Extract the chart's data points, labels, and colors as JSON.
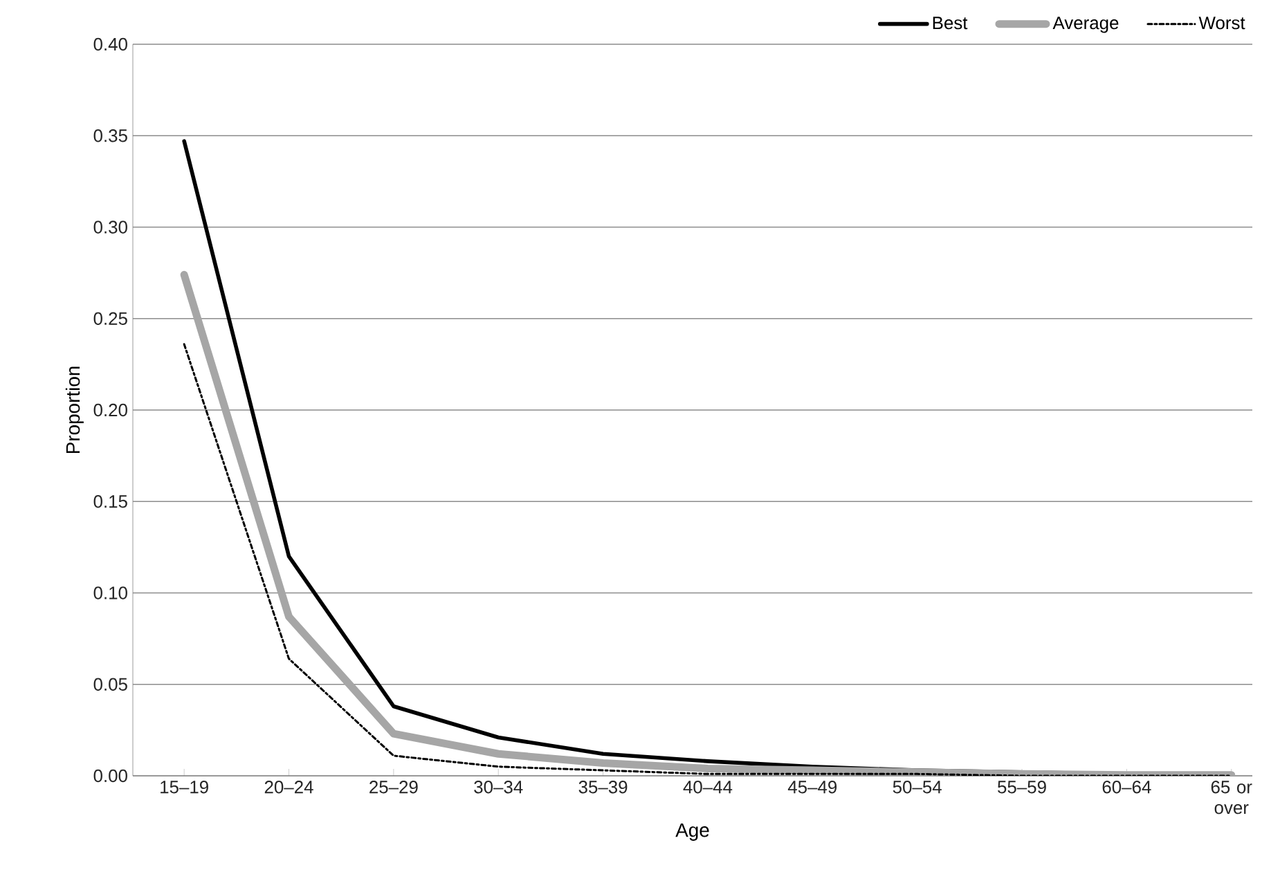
{
  "chart_data": {
    "type": "line",
    "xlabel": "Age",
    "ylabel": "Proportion",
    "categories": [
      "15–19",
      "20–24",
      "25–29",
      "30–34",
      "35–39",
      "40–44",
      "45–49",
      "50–54",
      "55–59",
      "60–64",
      "65 or over"
    ],
    "series": [
      {
        "name": "Best",
        "color": "#000000",
        "line_style": "solid",
        "values": [
          0.347,
          0.12,
          0.038,
          0.021,
          0.012,
          0.008,
          0.005,
          0.003,
          0.002,
          0.001,
          0.001
        ]
      },
      {
        "name": "Average",
        "color": "#a6a6a6",
        "line_style": "solid",
        "values": [
          0.274,
          0.087,
          0.023,
          0.012,
          0.007,
          0.004,
          0.003,
          0.002,
          0.001,
          0.0005,
          0.0005
        ]
      },
      {
        "name": "Worst",
        "color": "#000000",
        "line_style": "dashed",
        "values": [
          0.236,
          0.064,
          0.011,
          0.005,
          0.003,
          0.001,
          0.001,
          0.001,
          0,
          0,
          0
        ]
      }
    ],
    "ylim": [
      0,
      0.4
    ],
    "yticks": [
      {
        "value": 0,
        "label": "0.00"
      },
      {
        "value": 0.05,
        "label": "0.05"
      },
      {
        "value": 0.1,
        "label": "0.10"
      },
      {
        "value": 0.15,
        "label": "0.15"
      },
      {
        "value": 0.2,
        "label": "0.20"
      },
      {
        "value": 0.25,
        "label": "0.25"
      },
      {
        "value": 0.3,
        "label": "0.30"
      },
      {
        "value": 0.35,
        "label": "0.35"
      },
      {
        "value": 0.4,
        "label": "0.40"
      }
    ],
    "grid": "y",
    "legend": "top right",
    "marker": "none"
  }
}
